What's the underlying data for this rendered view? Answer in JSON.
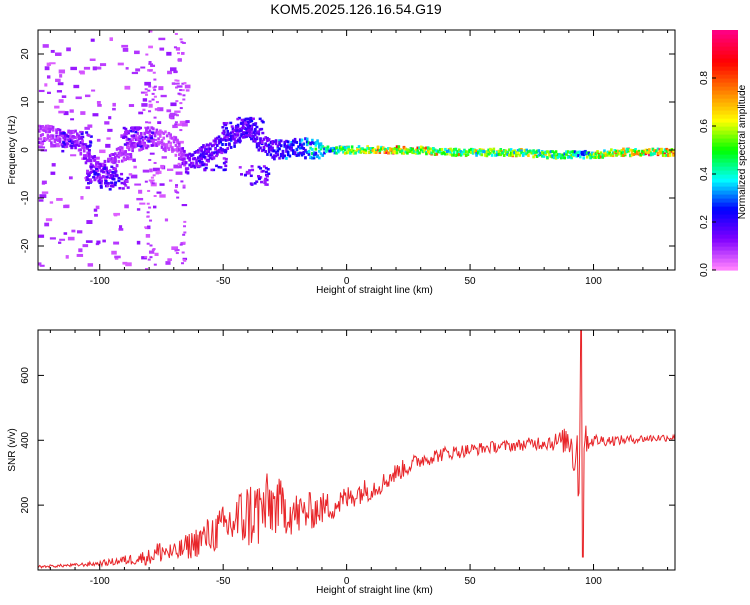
{
  "chart_data": {
    "title": "KOM5.2025.126.16.54.G19",
    "panels": [
      {
        "type": "heatmap",
        "xlabel": "Height of straight line (km)",
        "ylabel": "Frequency (Hz)",
        "xlim": [
          -125,
          133
        ],
        "ylim": [
          -25,
          25
        ],
        "xticks": [
          -100,
          -50,
          0,
          50,
          100
        ],
        "yticks": [
          -20,
          -10,
          0,
          10,
          20
        ],
        "grid": false,
        "colorbar": {
          "label": "Normalized spectral amplitude",
          "range": [
            0,
            1
          ],
          "ticks": [
            0.0,
            0.2,
            0.4,
            0.6,
            0.8
          ],
          "colors": [
            "#ff80ff",
            "#8000ff",
            "#0000ff",
            "#00ffff",
            "#00ff00",
            "#ffff00",
            "#ff8000",
            "#ff0000",
            "#ff0080"
          ]
        },
        "ridge": [
          {
            "x": -120,
            "f": 3,
            "a": 0.1
          },
          {
            "x": -110,
            "f": 2,
            "a": 0.12
          },
          {
            "x": -100,
            "f": -5,
            "a": 0.15
          },
          {
            "x": -90,
            "f": 0,
            "a": 0.1
          },
          {
            "x": -80,
            "f": 3,
            "a": 0.12
          },
          {
            "x": -70,
            "f": 1,
            "a": 0.08
          },
          {
            "x": -65,
            "f": -3,
            "a": 0.2
          },
          {
            "x": -55,
            "f": 0,
            "a": 0.22
          },
          {
            "x": -45,
            "f": 3,
            "a": 0.25
          },
          {
            "x": -40,
            "f": 5,
            "a": 0.25
          },
          {
            "x": -35,
            "f": 1,
            "a": 0.22
          },
          {
            "x": -30,
            "f": 0,
            "a": 0.28
          },
          {
            "x": -20,
            "f": 0.5,
            "a": 0.35
          },
          {
            "x": -10,
            "f": 0,
            "a": 0.5
          },
          {
            "x": 0,
            "f": 0,
            "a": 0.7
          },
          {
            "x": 10,
            "f": 0,
            "a": 0.82
          },
          {
            "x": 20,
            "f": 0,
            "a": 0.9
          },
          {
            "x": 30,
            "f": 0,
            "a": 0.8
          },
          {
            "x": 40,
            "f": -0.5,
            "a": 0.72
          },
          {
            "x": 50,
            "f": -0.5,
            "a": 0.68
          },
          {
            "x": 60,
            "f": -0.5,
            "a": 0.7
          },
          {
            "x": 70,
            "f": -0.5,
            "a": 0.72
          },
          {
            "x": 80,
            "f": -1,
            "a": 0.7
          },
          {
            "x": 90,
            "f": -1,
            "a": 0.65
          },
          {
            "x": 95,
            "f": -1,
            "a": 0.4
          },
          {
            "x": 100,
            "f": -1,
            "a": 0.75
          },
          {
            "x": 110,
            "f": -0.5,
            "a": 0.85
          },
          {
            "x": 120,
            "f": -0.5,
            "a": 0.9
          },
          {
            "x": 133,
            "f": -0.5,
            "a": 0.9
          }
        ]
      },
      {
        "type": "line",
        "xlabel": "Height of straight line (km)",
        "ylabel": "SNR (v/v)",
        "xlim": [
          -125,
          133
        ],
        "ylim": [
          0,
          740
        ],
        "xticks": [
          -100,
          -50,
          0,
          50,
          100
        ],
        "yticks": [
          200,
          400,
          600
        ],
        "grid": false,
        "series": [
          {
            "color": "#e8262a",
            "x": [
              -125,
              -110,
              -100,
              -90,
              -80,
              -75,
              -70,
              -60,
              -55,
              -50,
              -45,
              -40,
              -35,
              -30,
              -25,
              -20,
              -15,
              -10,
              -5,
              0,
              5,
              10,
              15,
              20,
              25,
              30,
              40,
              50,
              60,
              70,
              75,
              80,
              85,
              90,
              93,
              95,
              96,
              97,
              100,
              110,
              120,
              133
            ],
            "y": [
              10,
              15,
              20,
              30,
              40,
              60,
              50,
              90,
              110,
              130,
              150,
              170,
              180,
              200,
              190,
              170,
              180,
              190,
              200,
              220,
              240,
              250,
              270,
              300,
              320,
              340,
              360,
              370,
              380,
              385,
              390,
              395,
              395,
              400,
              380,
              300,
              420,
              400,
              400,
              400,
              405,
              410
            ],
            "noise": [
              4,
              5,
              8,
              15,
              25,
              40,
              30,
              50,
              60,
              70,
              90,
              110,
              120,
              100,
              80,
              70,
              60,
              50,
              45,
              40,
              38,
              35,
              32,
              30,
              28,
              25,
              22,
              20,
              18,
              18,
              20,
              25,
              30,
              45,
              150,
              200,
              90,
              40,
              20,
              15,
              12,
              12
            ]
          }
        ]
      }
    ]
  }
}
